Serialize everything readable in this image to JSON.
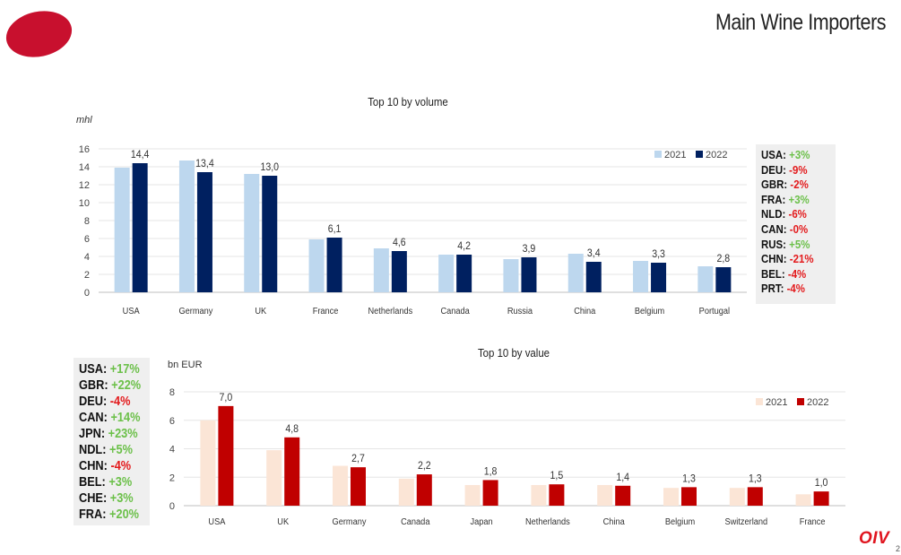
{
  "header": {
    "title": "Main Wine Importers"
  },
  "chart_data": [
    {
      "type": "bar",
      "title": "Top 10 by volume",
      "ylabel": "mhl",
      "ylim": [
        0,
        16
      ],
      "yticks": [
        0,
        2,
        4,
        6,
        8,
        10,
        12,
        14,
        16
      ],
      "grid": true,
      "legend_position": "top-right",
      "categories": [
        "USA",
        "Germany",
        "UK",
        "France",
        "Netherlands",
        "Canada",
        "Russia",
        "China",
        "Belgium",
        "Portugal"
      ],
      "series": [
        {
          "name": "2021",
          "color": "#bdd7ee",
          "values": [
            13.9,
            14.7,
            13.2,
            5.9,
            4.9,
            4.2,
            3.7,
            4.3,
            3.5,
            2.9
          ]
        },
        {
          "name": "2022",
          "color": "#002060",
          "values": [
            14.4,
            13.4,
            13.0,
            6.1,
            4.6,
            4.2,
            3.9,
            3.4,
            3.3,
            2.8
          ]
        }
      ],
      "data_labels": [
        "14,4",
        "13,4",
        "13,0",
        "6,1",
        "4,6",
        "4,2",
        "3,9",
        "3,4",
        "3,3",
        "2,8"
      ],
      "changes": [
        {
          "country": "USA",
          "change": "+3%",
          "sign": "pos"
        },
        {
          "country": "DEU",
          "change": "-9%",
          "sign": "neg"
        },
        {
          "country": "GBR",
          "change": "-2%",
          "sign": "neg"
        },
        {
          "country": "FRA",
          "change": "+3%",
          "sign": "pos"
        },
        {
          "country": "NLD",
          "change": "-6%",
          "sign": "neg"
        },
        {
          "country": "CAN",
          "change": "-0%",
          "sign": "neg"
        },
        {
          "country": "RUS",
          "change": "+5%",
          "sign": "pos"
        },
        {
          "country": "CHN",
          "change": "-21%",
          "sign": "neg"
        },
        {
          "country": "BEL",
          "change": "-4%",
          "sign": "neg"
        },
        {
          "country": "PRT",
          "change": "-4%",
          "sign": "neg"
        }
      ]
    },
    {
      "type": "bar",
      "title": "Top 10 by value",
      "ylabel": "bn EUR",
      "ylim": [
        0,
        8
      ],
      "yticks": [
        0,
        2,
        4,
        6,
        8
      ],
      "grid": true,
      "legend_position": "top-right",
      "categories": [
        "USA",
        "UK",
        "Germany",
        "Canada",
        "Japan",
        "Netherlands",
        "China",
        "Belgium",
        "Switzerland",
        "France"
      ],
      "series": [
        {
          "name": "2021",
          "color": "#fbe5d6",
          "values": [
            6.0,
            3.9,
            2.8,
            1.9,
            1.45,
            1.45,
            1.45,
            1.25,
            1.25,
            0.8
          ]
        },
        {
          "name": "2022",
          "color": "#c00000",
          "values": [
            7.0,
            4.8,
            2.7,
            2.2,
            1.8,
            1.5,
            1.4,
            1.3,
            1.3,
            1.0
          ]
        }
      ],
      "data_labels": [
        "7,0",
        "4,8",
        "2,7",
        "2,2",
        "1,8",
        "1,5",
        "1,4",
        "1,3",
        "1,3",
        "1,0"
      ],
      "changes": [
        {
          "country": "USA",
          "change": "+17%",
          "sign": "pos"
        },
        {
          "country": "GBR",
          "change": "+22%",
          "sign": "pos"
        },
        {
          "country": "DEU",
          "change": "-4%",
          "sign": "neg"
        },
        {
          "country": "CAN",
          "change": "+14%",
          "sign": "pos"
        },
        {
          "country": "JPN",
          "change": "+23%",
          "sign": "pos"
        },
        {
          "country": "NDL",
          "change": "+5%",
          "sign": "pos"
        },
        {
          "country": "CHN",
          "change": "-4%",
          "sign": "neg"
        },
        {
          "country": "BEL",
          "change": "+3%",
          "sign": "pos"
        },
        {
          "country": "CHE",
          "change": "+3%",
          "sign": "pos"
        },
        {
          "country": "FRA",
          "change": "+20%",
          "sign": "pos"
        }
      ]
    }
  ],
  "footer": {
    "brand": "OIV",
    "page_number": "2"
  }
}
